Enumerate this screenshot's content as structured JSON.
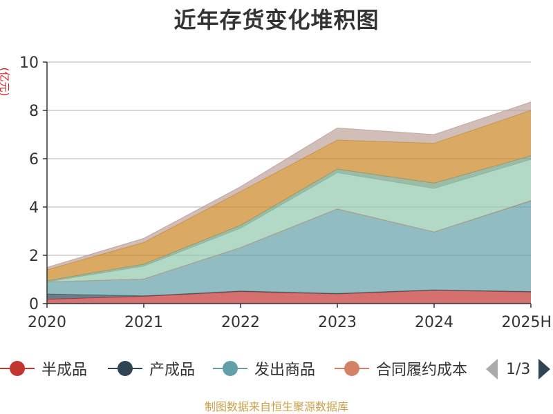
{
  "chart_data": {
    "type": "area",
    "stacked": true,
    "title": "近年存货变化堆积图",
    "ylabel": "(亿元)",
    "xlabel": "",
    "categories": [
      "2020",
      "2021",
      "2022",
      "2023",
      "2024",
      "2025H"
    ],
    "ylim": [
      0,
      10
    ],
    "yticks": [
      0,
      2,
      4,
      6,
      8,
      10
    ],
    "grid": true,
    "series": [
      {
        "name": "半成品",
        "color": "#c23531",
        "values": [
          0.18,
          0.3,
          0.5,
          0.4,
          0.55,
          0.48
        ]
      },
      {
        "name": "产成品",
        "color": "#2f4554",
        "values": [
          0.22,
          0.02,
          0.02,
          0.02,
          0.02,
          0.02
        ]
      },
      {
        "name": "发出商品",
        "color": "#61a0a8",
        "values": [
          0.5,
          0.7,
          1.8,
          3.5,
          2.4,
          3.75
        ]
      },
      {
        "name": "合同履约成本",
        "color": "#d48265",
        "values": [
          0.0,
          0.0,
          0.0,
          0.0,
          0.0,
          0.02
        ]
      },
      {
        "name": "",
        "color": "#91c7ae",
        "values": [
          0.0,
          0.53,
          0.8,
          1.5,
          1.8,
          1.7
        ]
      },
      {
        "name": "",
        "color": "#749f83",
        "values": [
          0.05,
          0.08,
          0.12,
          0.15,
          0.22,
          0.15
        ]
      },
      {
        "name": "",
        "color": "#ca8622",
        "values": [
          0.45,
          0.9,
          1.4,
          1.2,
          1.65,
          1.88
        ]
      },
      {
        "name": "",
        "color": "#bda29a",
        "values": [
          0.1,
          0.17,
          0.2,
          0.5,
          0.36,
          0.35
        ]
      }
    ]
  },
  "legend": {
    "items": [
      {
        "label": "半成品",
        "color": "#c23531"
      },
      {
        "label": "产成品",
        "color": "#2f4554"
      },
      {
        "label": "发出商品",
        "color": "#61a0a8"
      },
      {
        "label": "合同履约成本",
        "color": "#d48265"
      }
    ],
    "page": "1/3"
  },
  "source": "制图数据来自恒生聚源数据库"
}
